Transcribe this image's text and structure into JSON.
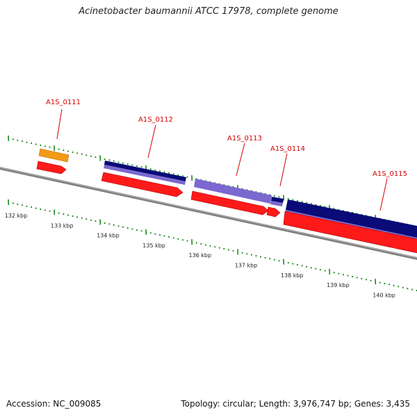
{
  "title": "Acinetobacter baumannii ATCC 17978, complete genome",
  "footer": {
    "accession": "Accession: NC_009085",
    "topology": "Topology: circular; Length: 3,976,747 bp; Genes: 3,435"
  },
  "colors": {
    "backbone": "#7f7f7f",
    "tick": "#1a8a1a",
    "gene_label": "#d40000",
    "cds_forward": "#ff1a1a",
    "rna": "#f39b16",
    "dark_feature": "#0a0a78",
    "light_feature": "#7b68d0"
  },
  "map": {
    "scale_labels": [
      "132 kbp",
      "133 kbp",
      "134 kbp",
      "135 kbp",
      "136 kbp",
      "137 kbp",
      "138 kbp",
      "139 kbp",
      "140 kbp"
    ],
    "genes": [
      {
        "label": "A1S_0111"
      },
      {
        "label": "A1S_0112"
      },
      {
        "label": "A1S_0113"
      },
      {
        "label": "A1S_0114"
      },
      {
        "label": "A1S_0115"
      }
    ]
  }
}
